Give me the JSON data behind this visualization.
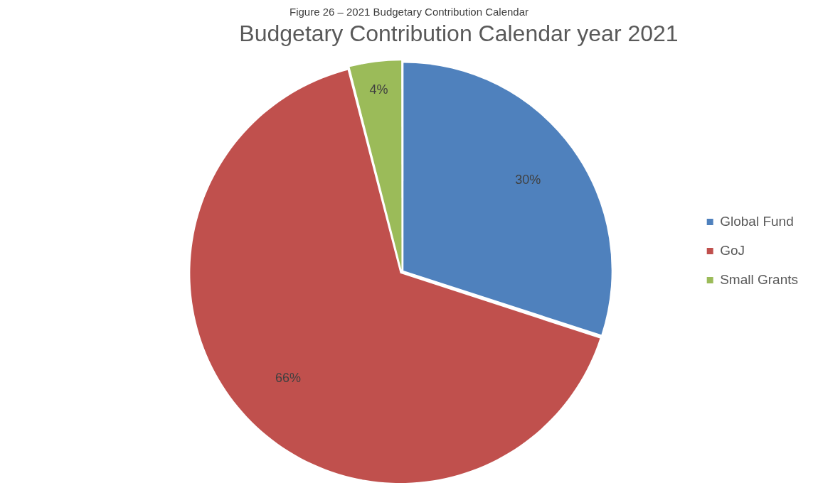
{
  "chart_data": {
    "type": "pie",
    "title": "Budgetary Contribution Calendar year 2021",
    "annotations": [
      "Figure 26 – 2021 Budgetary Contribution Calendar"
    ],
    "categories": [
      "Global Fund",
      "GoJ",
      "Small Grants"
    ],
    "values": [
      30,
      66,
      4
    ],
    "value_labels": [
      "30%",
      "66%",
      "4%"
    ],
    "colors": [
      "#4f81bd",
      "#c0504d",
      "#9bbb59"
    ],
    "legend": "right"
  }
}
